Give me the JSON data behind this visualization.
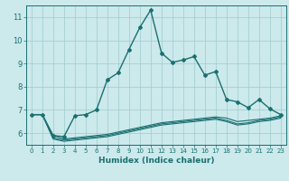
{
  "xlabel": "Humidex (Indice chaleur)",
  "bg_color": "#cce9ec",
  "grid_color": "#9dcbce",
  "line_color": "#1a7070",
  "xlim": [
    -0.5,
    23.5
  ],
  "ylim": [
    5.5,
    11.5
  ],
  "yticks": [
    6,
    7,
    8,
    9,
    10,
    11
  ],
  "xticks": [
    0,
    1,
    2,
    3,
    4,
    5,
    6,
    7,
    8,
    9,
    10,
    11,
    12,
    13,
    14,
    15,
    16,
    17,
    18,
    19,
    20,
    21,
    22,
    23
  ],
  "lines": [
    {
      "x": [
        0,
        1,
        2,
        3,
        4,
        5,
        6,
        7,
        8,
        9,
        10,
        11,
        12,
        13,
        14,
        15,
        16,
        17,
        18,
        19,
        20,
        21,
        22,
        23
      ],
      "y": [
        6.8,
        6.8,
        5.9,
        5.85,
        6.75,
        6.8,
        7.0,
        8.3,
        8.6,
        9.6,
        10.55,
        11.3,
        9.45,
        9.05,
        9.15,
        9.3,
        8.5,
        8.65,
        7.45,
        7.35,
        7.1,
        7.45,
        7.05,
        6.8
      ],
      "marker": true,
      "lw": 1.0
    },
    {
      "x": [
        0,
        1,
        2,
        3,
        4,
        5,
        6,
        7,
        8,
        9,
        10,
        11,
        12,
        13,
        14,
        15,
        16,
        17,
        18,
        19,
        20,
        21,
        22,
        23
      ],
      "y": [
        6.8,
        6.8,
        5.9,
        5.75,
        5.8,
        5.85,
        5.9,
        5.95,
        6.05,
        6.15,
        6.25,
        6.35,
        6.45,
        6.5,
        6.55,
        6.6,
        6.65,
        6.7,
        6.65,
        6.5,
        6.55,
        6.6,
        6.65,
        6.75
      ],
      "marker": false,
      "lw": 0.8
    },
    {
      "x": [
        0,
        1,
        2,
        3,
        4,
        5,
        6,
        7,
        8,
        9,
        10,
        11,
        12,
        13,
        14,
        15,
        16,
        17,
        18,
        19,
        20,
        21,
        22,
        23
      ],
      "y": [
        6.8,
        6.8,
        5.8,
        5.7,
        5.75,
        5.8,
        5.85,
        5.9,
        6.0,
        6.1,
        6.2,
        6.3,
        6.4,
        6.45,
        6.5,
        6.55,
        6.6,
        6.65,
        6.55,
        6.4,
        6.45,
        6.55,
        6.6,
        6.7
      ],
      "marker": false,
      "lw": 0.8
    },
    {
      "x": [
        0,
        1,
        2,
        3,
        4,
        5,
        6,
        7,
        8,
        9,
        10,
        11,
        12,
        13,
        14,
        15,
        16,
        17,
        18,
        19,
        20,
        21,
        22,
        23
      ],
      "y": [
        6.8,
        6.8,
        5.75,
        5.65,
        5.7,
        5.75,
        5.8,
        5.85,
        5.95,
        6.05,
        6.15,
        6.25,
        6.35,
        6.4,
        6.45,
        6.5,
        6.55,
        6.6,
        6.5,
        6.35,
        6.4,
        6.5,
        6.55,
        6.65
      ],
      "marker": false,
      "lw": 0.8
    }
  ]
}
